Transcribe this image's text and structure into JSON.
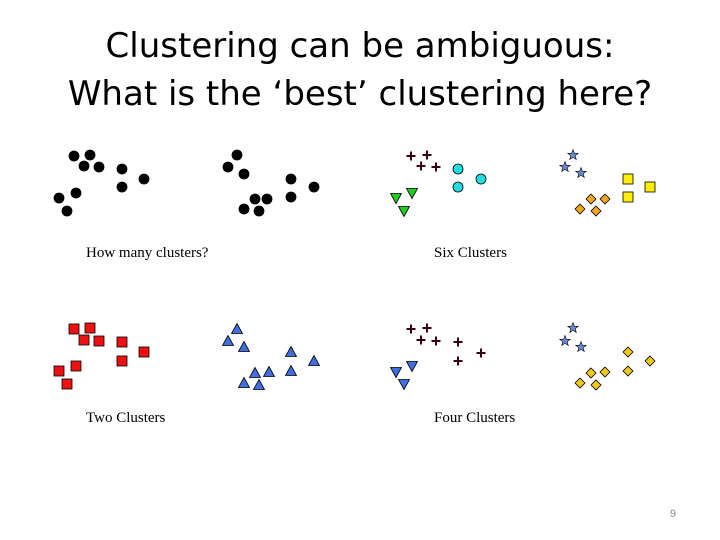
{
  "slide": {
    "title_line1": "Clustering can be ambiguous:",
    "title_line2": "What is the ‘best’ clustering here?",
    "captions": {
      "top_left": "How many clusters?",
      "top_right": "Six Clusters",
      "bottom_left": "Two Clusters",
      "bottom_right": "Four Clusters"
    },
    "page_number": "9"
  },
  "colors": {
    "black": "#000000",
    "red": "#ee1111",
    "blue": "#3f6fe0",
    "green": "#22cc22",
    "cyan": "#22dddd",
    "yellow": "#ffee00",
    "orange": "#f0a818",
    "star_blue": "#6a88d8",
    "plus_dark": "#3a0010"
  },
  "icons": {
    "circle": "circle-marker-icon",
    "square": "square-marker-icon",
    "triangle_up": "triangle-up-marker-icon",
    "triangle_down": "triangle-down-marker-icon",
    "plus": "plus-marker-icon",
    "star": "star-marker-icon",
    "diamond": "diamond-marker-icon"
  }
}
